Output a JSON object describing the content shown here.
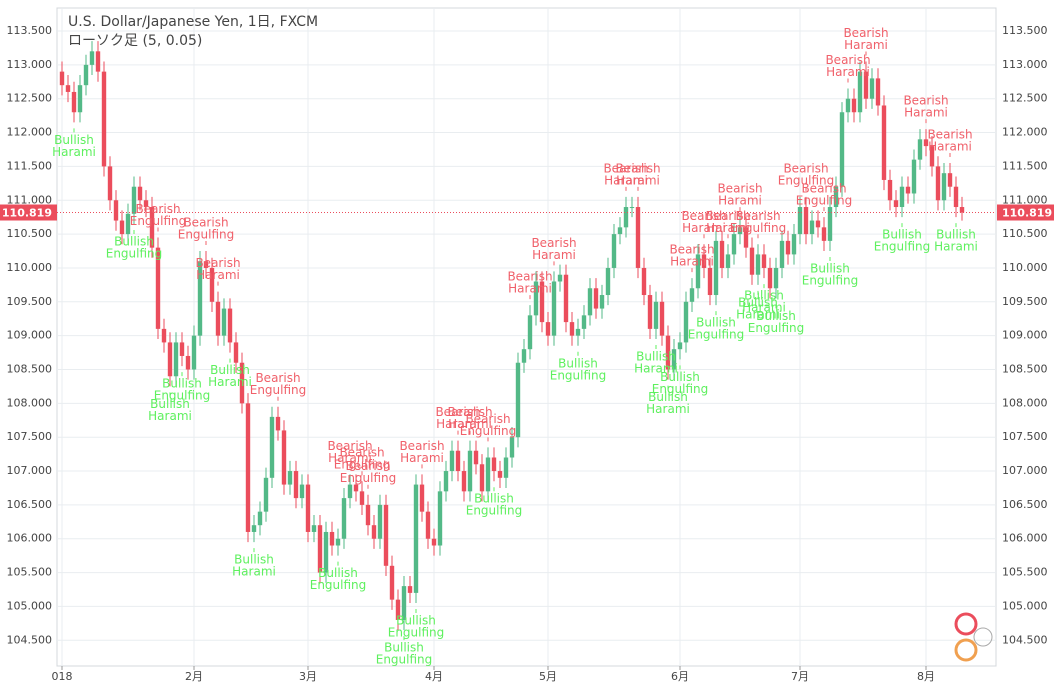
{
  "chart_data": {
    "type": "candlestick",
    "title": "U.S. Dollar/Japanese Yen, 1日, FXCM",
    "subtitle": "ローソク足 (5, 0.05)",
    "up_color": "#53b987",
    "down_color": "#eb4d5c",
    "bullish_label_color": "#5ef05e",
    "bearish_label_color": "#f0606a",
    "grid": true,
    "ylim": [
      104.12,
      113.84
    ],
    "yticks": [
      {
        "value": 104.5,
        "label": "104.500"
      },
      {
        "value": 105,
        "label": "105.000"
      },
      {
        "value": 105.5,
        "label": "105.500"
      },
      {
        "value": 106,
        "label": "106.000"
      },
      {
        "value": 106.5,
        "label": "106.500"
      },
      {
        "value": 107,
        "label": "107.000"
      },
      {
        "value": 107.5,
        "label": "107.500"
      },
      {
        "value": 108,
        "label": "108.000"
      },
      {
        "value": 108.5,
        "label": "108.500"
      },
      {
        "value": 109,
        "label": "109.000"
      },
      {
        "value": 109.5,
        "label": "109.500"
      },
      {
        "value": 110,
        "label": "110.000"
      },
      {
        "value": 110.5,
        "label": "110.500"
      },
      {
        "value": 111,
        "label": "111.000"
      },
      {
        "value": 111.5,
        "label": "111.500"
      },
      {
        "value": 112,
        "label": "112.000"
      },
      {
        "value": 112.5,
        "label": "112.500"
      },
      {
        "value": 113,
        "label": "113.000"
      },
      {
        "value": 113.5,
        "label": "113.500"
      }
    ],
    "xticks": [
      {
        "index": 0,
        "label": "018"
      },
      {
        "index": 22,
        "label": "2月"
      },
      {
        "index": 41,
        "label": "3月"
      },
      {
        "index": 62,
        "label": "4月"
      },
      {
        "index": 81,
        "label": "5月"
      },
      {
        "index": 103,
        "label": "6月"
      },
      {
        "index": 123,
        "label": "7月"
      },
      {
        "index": 144,
        "label": "8月"
      }
    ],
    "last_price": {
      "value": 110.819,
      "label": "110.819"
    },
    "open": [
      112.9,
      112.7,
      112.6,
      112.3,
      112.7,
      113.0,
      113.2,
      112.9,
      111.5,
      111.0,
      110.7,
      110.5,
      110.8,
      111.2,
      111.0,
      110.9,
      110.3,
      109.1,
      108.9,
      108.4,
      108.9,
      108.7,
      108.5,
      109.0,
      110.1,
      110.0,
      109.5,
      109.0,
      109.4,
      108.9,
      108.6,
      108.0,
      106.1,
      106.2,
      106.4,
      106.9,
      107.8,
      107.6,
      106.8,
      107.0,
      106.6,
      106.8,
      106.1,
      106.2,
      105.5,
      106.1,
      105.9,
      106.0,
      106.6,
      106.8,
      106.7,
      106.5,
      106.2,
      106.0,
      106.5,
      105.6,
      105.1,
      104.8,
      105.3,
      105.2,
      106.8,
      106.4,
      106.0,
      105.9,
      106.7,
      107.0,
      107.3,
      107.0,
      106.7,
      107.3,
      107.1,
      106.7,
      107.2,
      107.0,
      106.9,
      107.2,
      107.5,
      108.6,
      108.8,
      109.3,
      109.8,
      109.2,
      109.0,
      109.8,
      109.9,
      109.2,
      109.0,
      109.1,
      109.3,
      109.7,
      109.4,
      109.6,
      110.0,
      110.5,
      110.6,
      110.9,
      110.9,
      110.0,
      109.6,
      109.1,
      109.5,
      109.0,
      108.5,
      108.8,
      108.9,
      109.5,
      109.7,
      110.2,
      110.0,
      109.6,
      110.4,
      110.0,
      110.2,
      110.5,
      110.6,
      110.3,
      109.9,
      110.2,
      110.0,
      109.7,
      110.0,
      110.4,
      110.2,
      110.5,
      110.9,
      110.5,
      110.7,
      110.6,
      110.4,
      110.9,
      111.2,
      112.3,
      112.5,
      112.3,
      112.9,
      112.5,
      112.8,
      112.4,
      111.3,
      111.0,
      110.9,
      111.2,
      111.1,
      111.6,
      111.9,
      111.8,
      111.5,
      111.0,
      111.4,
      111.2,
      110.9
    ],
    "high": [
      113.05,
      112.85,
      112.75,
      112.85,
      113.15,
      113.35,
      113.35,
      113.05,
      111.65,
      111.15,
      110.85,
      110.95,
      111.35,
      111.35,
      111.15,
      111.05,
      110.45,
      109.25,
      109.05,
      109.05,
      109.05,
      108.85,
      109.15,
      110.25,
      110.25,
      110.15,
      109.65,
      109.55,
      109.55,
      109.05,
      108.75,
      108.15,
      106.35,
      106.55,
      107.05,
      107.95,
      107.95,
      107.75,
      107.15,
      107.15,
      106.95,
      106.95,
      106.35,
      106.35,
      106.25,
      106.25,
      106.15,
      106.75,
      106.95,
      106.95,
      106.85,
      106.65,
      106.35,
      106.65,
      106.65,
      105.75,
      105.25,
      105.45,
      105.45,
      106.95,
      106.95,
      106.55,
      106.15,
      106.85,
      107.15,
      107.45,
      107.45,
      107.15,
      107.45,
      107.45,
      107.25,
      107.35,
      107.35,
      107.15,
      107.35,
      107.65,
      108.75,
      108.95,
      109.45,
      109.95,
      109.95,
      109.35,
      109.95,
      110.05,
      110.05,
      109.35,
      109.25,
      109.45,
      109.85,
      109.85,
      109.75,
      110.15,
      110.65,
      110.75,
      111.05,
      111.05,
      111.05,
      110.15,
      109.75,
      109.65,
      109.65,
      109.15,
      108.95,
      109.05,
      109.65,
      109.85,
      110.35,
      110.35,
      110.15,
      110.55,
      110.55,
      110.35,
      110.65,
      110.75,
      110.75,
      110.45,
      110.35,
      110.35,
      110.15,
      110.15,
      110.55,
      110.55,
      110.65,
      111.05,
      111.05,
      110.85,
      110.85,
      110.75,
      111.05,
      111.35,
      112.45,
      112.65,
      112.65,
      113.05,
      113.05,
      112.95,
      112.95,
      112.55,
      111.45,
      111.15,
      111.35,
      111.35,
      111.75,
      112.05,
      112.05,
      111.95,
      111.65,
      111.55,
      111.55,
      111.35,
      111.05
    ],
    "low": [
      112.55,
      112.45,
      112.15,
      112.15,
      112.55,
      112.85,
      112.75,
      111.35,
      110.85,
      110.55,
      110.35,
      110.35,
      110.65,
      110.85,
      110.75,
      110.15,
      108.95,
      108.75,
      108.25,
      108.25,
      108.55,
      108.35,
      108.35,
      108.85,
      109.85,
      109.35,
      108.85,
      108.85,
      108.75,
      108.45,
      107.85,
      105.95,
      105.95,
      106.05,
      106.25,
      106.75,
      107.45,
      106.65,
      106.65,
      106.45,
      106.45,
      105.95,
      105.95,
      105.35,
      105.35,
      105.75,
      105.75,
      105.85,
      106.45,
      106.55,
      106.35,
      106.05,
      105.85,
      105.85,
      105.45,
      104.95,
      104.65,
      104.65,
      105.05,
      105.05,
      106.25,
      105.85,
      105.75,
      105.75,
      106.55,
      106.85,
      106.85,
      106.55,
      106.55,
      106.95,
      106.55,
      106.55,
      106.85,
      106.75,
      106.75,
      107.05,
      107.35,
      108.45,
      108.65,
      109.15,
      109.05,
      108.85,
      108.85,
      109.65,
      109.05,
      108.85,
      108.85,
      108.95,
      109.15,
      109.25,
      109.25,
      109.45,
      109.85,
      110.35,
      110.45,
      110.75,
      109.85,
      109.45,
      108.95,
      108.95,
      108.85,
      108.35,
      108.35,
      108.65,
      108.75,
      109.35,
      109.55,
      109.85,
      109.45,
      109.45,
      109.85,
      109.85,
      110.05,
      110.35,
      110.15,
      109.75,
      109.75,
      109.85,
      109.55,
      109.55,
      109.85,
      110.05,
      110.05,
      110.35,
      110.35,
      110.35,
      110.45,
      110.25,
      110.25,
      110.75,
      111.05,
      112.15,
      112.15,
      112.15,
      112.35,
      112.35,
      112.25,
      111.15,
      110.85,
      110.75,
      110.75,
      110.95,
      110.95,
      111.45,
      111.65,
      111.35,
      110.85,
      110.85,
      111.05,
      110.75,
      110.7
    ],
    "close": [
      112.7,
      112.6,
      112.3,
      112.7,
      113.0,
      113.2,
      112.9,
      111.5,
      111.0,
      110.7,
      110.5,
      110.8,
      111.2,
      111.0,
      110.9,
      110.3,
      109.1,
      108.9,
      108.4,
      108.9,
      108.7,
      108.5,
      109.0,
      110.1,
      110.0,
      109.5,
      109.0,
      109.4,
      108.9,
      108.6,
      108.0,
      106.1,
      106.2,
      106.4,
      106.9,
      107.8,
      107.6,
      106.8,
      107.0,
      106.6,
      106.8,
      106.1,
      106.2,
      105.5,
      106.1,
      105.9,
      106.0,
      106.6,
      106.8,
      106.7,
      106.5,
      106.2,
      106.0,
      106.5,
      105.6,
      105.1,
      104.8,
      105.3,
      105.2,
      106.8,
      106.4,
      106.0,
      105.9,
      106.7,
      107.0,
      107.3,
      107.0,
      106.7,
      107.3,
      107.1,
      106.7,
      107.2,
      107.0,
      106.9,
      107.2,
      107.5,
      108.6,
      108.8,
      109.3,
      109.8,
      109.2,
      109.0,
      109.8,
      109.9,
      109.2,
      109.0,
      109.1,
      109.3,
      109.7,
      109.4,
      109.6,
      110.0,
      110.5,
      110.6,
      110.9,
      110.9,
      110.0,
      109.6,
      109.1,
      109.5,
      109.0,
      108.5,
      108.8,
      108.9,
      109.5,
      109.7,
      110.2,
      110.0,
      109.6,
      110.4,
      110.0,
      110.2,
      110.5,
      110.6,
      110.3,
      109.9,
      110.2,
      110.0,
      109.7,
      110.0,
      110.4,
      110.2,
      110.5,
      110.9,
      110.5,
      110.7,
      110.6,
      110.4,
      110.9,
      111.2,
      112.3,
      112.5,
      112.3,
      112.9,
      112.5,
      112.8,
      112.4,
      111.3,
      111.0,
      110.9,
      111.2,
      111.1,
      111.6,
      111.9,
      111.8,
      111.5,
      111.0,
      111.4,
      111.2,
      110.9,
      110.819
    ],
    "annotations": [
      {
        "index": 2,
        "side": "below",
        "lines": [
          "Bullish",
          "Harami"
        ]
      },
      {
        "index": 12,
        "side": "below",
        "lines": [
          "Bullish",
          "Engulfing"
        ]
      },
      {
        "index": 18,
        "side": "below",
        "lines": [
          "Bullish",
          "Harami"
        ]
      },
      {
        "index": 20,
        "side": "below",
        "lines": [
          "Bullish",
          "Engulfing"
        ]
      },
      {
        "index": 28,
        "side": "below",
        "lines": [
          "Bullish",
          "Harami"
        ]
      },
      {
        "index": 32,
        "side": "below",
        "lines": [
          "Bullish",
          "Harami"
        ]
      },
      {
        "index": 46,
        "side": "below",
        "lines": [
          "Bullish",
          "Engulfing"
        ]
      },
      {
        "index": 59,
        "side": "below",
        "lines": [
          "Bullish",
          "Engulfing"
        ]
      },
      {
        "index": 57,
        "side": "below",
        "lines": [
          "Bullish",
          "Engulfing"
        ]
      },
      {
        "index": 72,
        "side": "below",
        "lines": [
          "Bullish",
          "Engulfing"
        ]
      },
      {
        "index": 86,
        "side": "below",
        "lines": [
          "Bullish",
          "Engulfing"
        ]
      },
      {
        "index": 99,
        "side": "below",
        "lines": [
          "Bullish",
          "Harami"
        ]
      },
      {
        "index": 103,
        "side": "below",
        "lines": [
          "Bullish",
          "Engulfing"
        ]
      },
      {
        "index": 101,
        "side": "below",
        "lines": [
          "Bullish",
          "Harami"
        ]
      },
      {
        "index": 109,
        "side": "below",
        "lines": [
          "Bullish",
          "Engulfing"
        ]
      },
      {
        "index": 116,
        "side": "below",
        "lines": [
          "Bullish",
          "Harami"
        ]
      },
      {
        "index": 117,
        "side": "below",
        "lines": [
          "Bullish",
          "Harami"
        ]
      },
      {
        "index": 119,
        "side": "below",
        "lines": [
          "Bullish",
          "Engulfing"
        ]
      },
      {
        "index": 128,
        "side": "below",
        "lines": [
          "Bullish",
          "Engulfing"
        ]
      },
      {
        "index": 140,
        "side": "below",
        "lines": [
          "Bullish",
          "Engulfing"
        ]
      },
      {
        "index": 149,
        "side": "below",
        "lines": [
          "Bullish",
          "Harami"
        ]
      },
      {
        "index": 16,
        "side": "above",
        "lines": [
          "Bearish",
          "Engulfing"
        ]
      },
      {
        "index": 24,
        "side": "above",
        "lines": [
          "Bearish",
          "Engulfing"
        ]
      },
      {
        "index": 26,
        "side": "above",
        "lines": [
          "Bearish",
          "Harami"
        ]
      },
      {
        "index": 36,
        "side": "above",
        "lines": [
          "Bearish",
          "Engulfing"
        ]
      },
      {
        "index": 48,
        "side": "above",
        "lines": [
          "Bearish",
          "Harami"
        ]
      },
      {
        "index": 50,
        "side": "above",
        "lines": [
          "Bearish",
          "Engulfing"
        ]
      },
      {
        "index": 51,
        "side": "above",
        "lines": [
          "Bearish",
          "Engulfing"
        ]
      },
      {
        "index": 60,
        "side": "above",
        "lines": [
          "Bearish",
          "Harami"
        ]
      },
      {
        "index": 66,
        "side": "above",
        "lines": [
          "Bearish",
          "Harami"
        ]
      },
      {
        "index": 71,
        "side": "above",
        "lines": [
          "Bearish",
          "Engulfing"
        ]
      },
      {
        "index": 68,
        "side": "above",
        "lines": [
          "Bearish",
          "Harami"
        ]
      },
      {
        "index": 82,
        "side": "above",
        "lines": [
          "Bearish",
          "Harami"
        ]
      },
      {
        "index": 78,
        "side": "above",
        "lines": [
          "Bearish",
          "Harami"
        ]
      },
      {
        "index": 94,
        "side": "above",
        "lines": [
          "Bearish",
          "Harami"
        ]
      },
      {
        "index": 96,
        "side": "above",
        "lines": [
          "Bearish",
          "Harami"
        ]
      },
      {
        "index": 105,
        "side": "above",
        "lines": [
          "Bearish",
          "Harami"
        ]
      },
      {
        "index": 107,
        "side": "above",
        "lines": [
          "Bearish",
          "Harami"
        ]
      },
      {
        "index": 111,
        "side": "above",
        "lines": [
          "Bearish",
          "Harami"
        ]
      },
      {
        "index": 113,
        "side": "above",
        "lines": [
          "Bearish",
          "Harami"
        ]
      },
      {
        "index": 116,
        "side": "above",
        "lines": [
          "Bearish",
          "Engulfing"
        ]
      },
      {
        "index": 124,
        "side": "above",
        "lines": [
          "Bearish",
          "Engulfing"
        ]
      },
      {
        "index": 127,
        "side": "above",
        "lines": [
          "Bearish",
          "Engulfing"
        ]
      },
      {
        "index": 131,
        "side": "above",
        "lines": [
          "Bearish",
          "Harami"
        ]
      },
      {
        "index": 134,
        "side": "above",
        "lines": [
          "Bearish",
          "Harami"
        ]
      },
      {
        "index": 144,
        "side": "above",
        "lines": [
          "Bearish",
          "Harami"
        ]
      },
      {
        "index": 148,
        "side": "above",
        "lines": [
          "Bearish",
          "Harami"
        ]
      }
    ]
  }
}
